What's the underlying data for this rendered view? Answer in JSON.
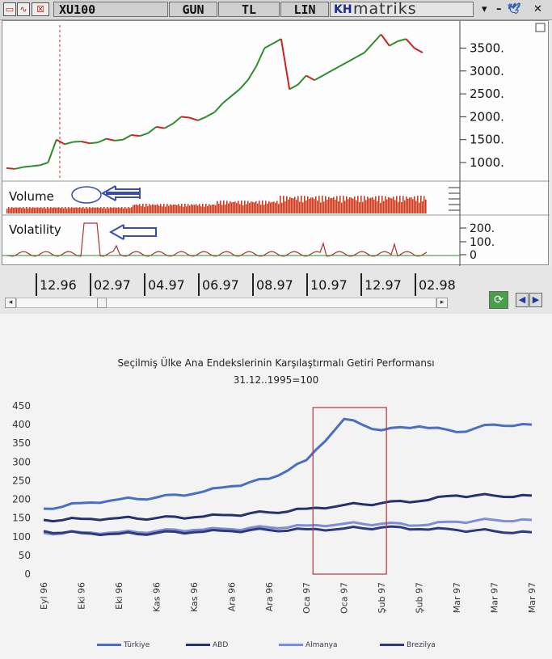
{
  "terminal": {
    "symbol": "XU100",
    "period": "GUN",
    "currency": "TL",
    "scale": "LIN",
    "kh": "KH",
    "brand": "matriks",
    "x_ticks": [
      "12.96",
      "02.97",
      "04.97",
      "06.97",
      "08.97",
      "10.97",
      "12.97",
      "02.98"
    ],
    "price_ticks": [
      "3500.",
      "3000.",
      "2500.",
      "2000.",
      "1500.",
      "1000."
    ],
    "volume_label": "Volume",
    "volatility_label": "Volatility",
    "volatility_ticks": [
      "200.",
      "100.",
      "0"
    ],
    "colors": {
      "up": "#2e8b2e",
      "down": "#cc2222",
      "volume": "#d03a1a",
      "arrow": "#3a4cb0",
      "dashed": "#c03030"
    }
  },
  "chart_data": [
    {
      "type": "line",
      "title": "XU100",
      "x_ticks": [
        "12.96",
        "02.97",
        "04.97",
        "06.97",
        "08.97",
        "10.97",
        "12.97",
        "02.98"
      ],
      "ylim": [
        700,
        3950
      ],
      "y_ticks": [
        1000,
        1500,
        2000,
        2500,
        3000,
        3500
      ],
      "series": [
        {
          "name": "XU100",
          "x": [
            0,
            2,
            4,
            6,
            8,
            10,
            12,
            14,
            16,
            18,
            20,
            22,
            24,
            26,
            28,
            30,
            32,
            34,
            36,
            38,
            40,
            42,
            44,
            46,
            48,
            50,
            52,
            54,
            56,
            58,
            60,
            62,
            64,
            66,
            68,
            70,
            72,
            74,
            76,
            78,
            80,
            82,
            84,
            86,
            88,
            90,
            92,
            94,
            96,
            98,
            100
          ],
          "values": [
            880,
            860,
            900,
            920,
            940,
            1000,
            1500,
            1400,
            1450,
            1460,
            1420,
            1440,
            1520,
            1480,
            1500,
            1600,
            1580,
            1640,
            1780,
            1750,
            1850,
            2000,
            1980,
            1920,
            2000,
            2100,
            2300,
            2450,
            2600,
            2800,
            3100,
            3500,
            3600,
            3700,
            2600,
            2700,
            2900,
            2800,
            2900,
            3000,
            3100,
            3200,
            3300,
            3400,
            3600,
            3800,
            3550,
            3650,
            3700,
            3500,
            3400
          ]
        }
      ]
    },
    {
      "type": "line",
      "title": "Seçilmiş Ülke Ana Endekslerinin Karşılaştırmalı Getiri Performansı",
      "subtitle": "31.12..1995=100",
      "categories": [
        "Eyl 96",
        "Eki 96",
        "Eki 96",
        "Kas 96",
        "Kas 96",
        "Ara 96",
        "Ara 96",
        "Oca 97",
        "Oca 97",
        "Şub 97",
        "Şub 97",
        "Mar 97",
        "Mar 97",
        "Mar 97"
      ],
      "ylim": [
        0,
        450
      ],
      "y_ticks": [
        0,
        50,
        100,
        150,
        200,
        250,
        300,
        350,
        400,
        450
      ],
      "series": [
        {
          "name": "Türkiye",
          "color": "#4a6fc1",
          "values": [
            175,
            190,
            200,
            205,
            215,
            235,
            255,
            305,
            415,
            385,
            395,
            380,
            400,
            400
          ]
        },
        {
          "name": "ABD",
          "color": "#24336b",
          "values": [
            145,
            148,
            150,
            150,
            152,
            158,
            165,
            175,
            185,
            190,
            195,
            210,
            210,
            210
          ]
        },
        {
          "name": "Almanya",
          "color": "#7f8cd8",
          "values": [
            110,
            112,
            112,
            115,
            118,
            120,
            125,
            130,
            135,
            135,
            130,
            140,
            145,
            145
          ]
        },
        {
          "name": "Brezilya",
          "color": "#2e3a7a",
          "values": [
            115,
            110,
            108,
            110,
            112,
            115,
            118,
            120,
            122,
            125,
            120,
            118,
            115,
            112
          ]
        }
      ],
      "highlight_range": [
        "Oca 97",
        "Şub 97"
      ]
    }
  ]
}
